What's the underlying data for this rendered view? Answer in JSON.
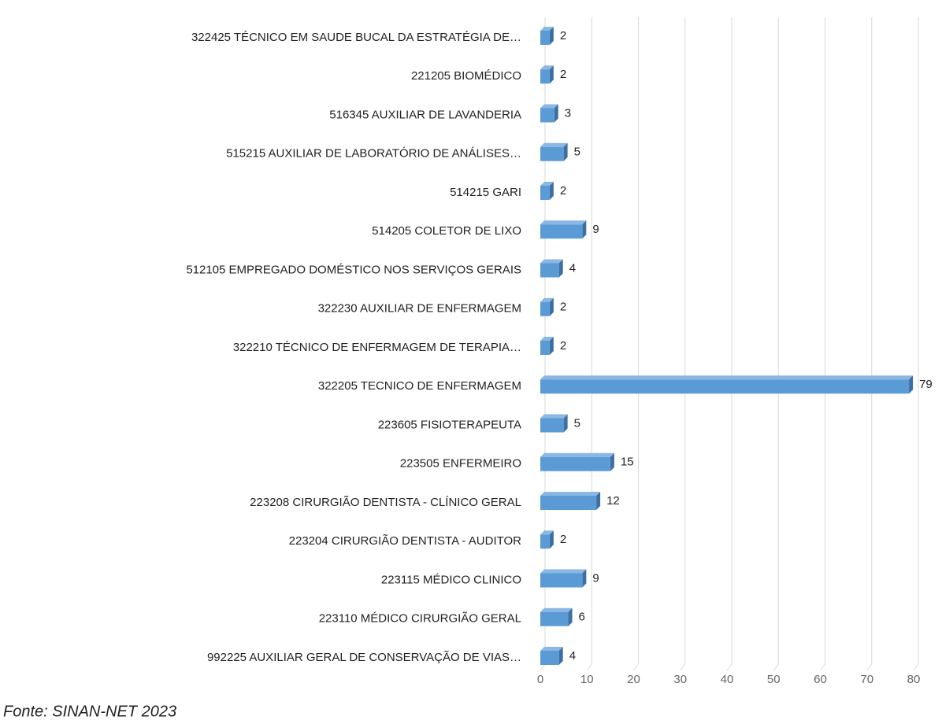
{
  "chart_data": {
    "type": "bar3d_horizontal",
    "categories": [
      "322425 TÉCNICO EM SAUDE BUCAL DA ESTRATÉGIA DE…",
      "221205 BIOMÉDICO",
      "516345 AUXILIAR DE LAVANDERIA",
      "515215 AUXILIAR DE LABORATÓRIO DE ANÁLISES…",
      "514215 GARI",
      "514205 COLETOR DE LIXO",
      "512105 EMPREGADO DOMÉSTICO NOS SERVIÇOS GERAIS",
      "322230 AUXILIAR DE ENFERMAGEM",
      "322210 TÉCNICO DE ENFERMAGEM DE TERAPIA…",
      "322205 TECNICO DE ENFERMAGEM",
      "223605 FISIOTERAPEUTA",
      "223505 ENFERMEIRO",
      "223208 CIRURGIÃO DENTISTA - CLÍNICO GERAL",
      "223204 CIRURGIÃO DENTISTA - AUDITOR",
      "223115 MÉDICO CLINICO",
      "223110 MÉDICO CIRURGIÃO GERAL",
      "992225 AUXILIAR GERAL DE CONSERVAÇÃO DE VIAS…"
    ],
    "values": [
      2,
      2,
      3,
      5,
      2,
      9,
      4,
      2,
      2,
      79,
      5,
      15,
      12,
      2,
      9,
      6,
      4
    ],
    "color": "#5b9bd5",
    "xlim": [
      0,
      80
    ],
    "xticks": [
      0,
      10,
      20,
      30,
      40,
      50,
      60,
      70,
      80
    ],
    "grid": true,
    "source": "Fonte: SINAN-NET 2023"
  }
}
